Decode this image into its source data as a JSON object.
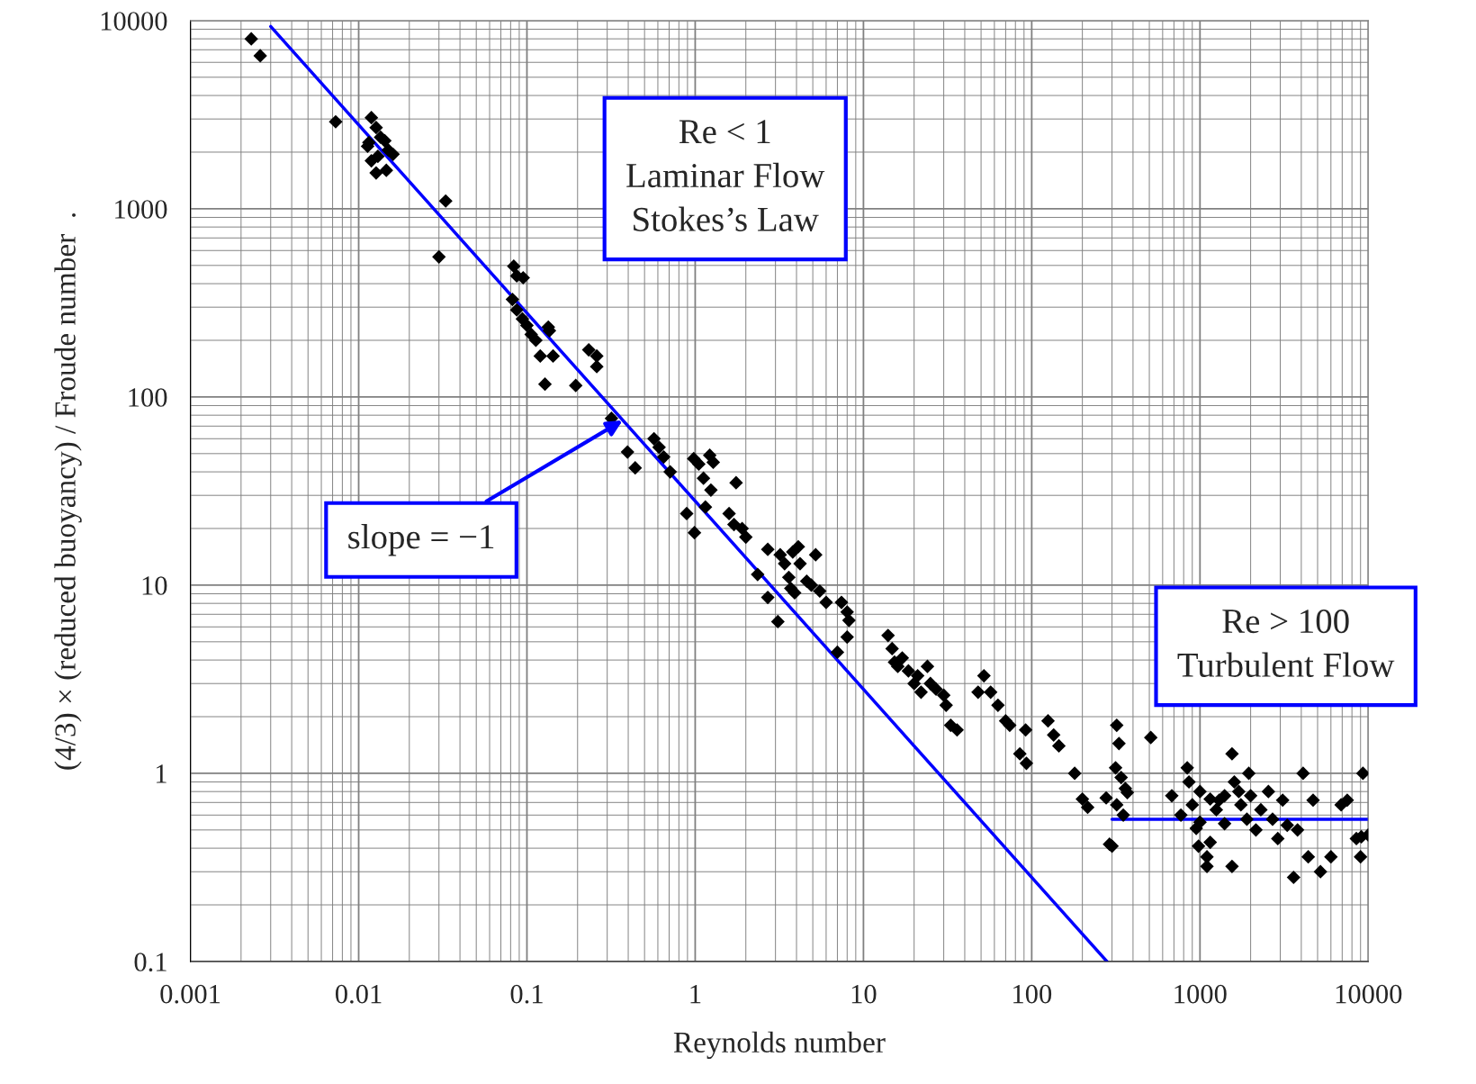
{
  "chart_data": {
    "type": "scatter",
    "xlabel": "Reynolds number",
    "ylabel": "(4/3) × (reduced buoyancy) / Froude number  .",
    "log": "xy",
    "grid": true,
    "legend": false,
    "xlim": [
      0.001,
      10000
    ],
    "ylim": [
      0.1,
      10000
    ],
    "xticks": [
      0.001,
      0.01,
      0.1,
      1,
      10,
      100,
      1000,
      10000
    ],
    "yticks": [
      0.1,
      1,
      10,
      100,
      1000,
      10000
    ],
    "series": [
      {
        "color": "#000000",
        "marker": "diamond",
        "x": [
          0.0023,
          0.0026,
          0.0073,
          0.0119,
          0.0127,
          0.0135,
          0.0143,
          0.015,
          0.016,
          0.0113,
          0.0119,
          0.0127,
          0.0146,
          0.0115,
          0.013,
          0.0329,
          0.03,
          0.0835,
          0.087,
          0.095,
          0.082,
          0.087,
          0.094,
          0.1,
          0.106,
          0.113,
          0.12,
          0.128,
          0.134,
          0.143,
          0.136,
          0.195,
          0.233,
          0.26,
          0.26,
          0.318,
          0.396,
          0.44,
          0.569,
          0.61,
          0.65,
          0.71,
          0.89,
          0.99,
          0.98,
          1.05,
          1.12,
          1.15,
          1.22,
          1.28,
          1.24,
          1.59,
          1.7,
          1.9,
          2.0,
          1.75,
          2.35,
          2.7,
          2.7,
          3.1,
          3.2,
          3.4,
          3.6,
          3.7,
          3.9,
          3.8,
          4.1,
          4.2,
          4.6,
          4.9,
          5.2,
          5.5,
          6.0,
          7.0,
          7.4,
          8.0,
          8.2,
          8.0,
          14,
          14.8,
          15.3,
          16,
          17,
          18.5,
          20,
          21,
          22,
          24,
          25,
          27,
          30,
          33,
          36,
          31,
          52,
          48,
          57,
          63,
          70,
          74,
          92,
          85,
          93,
          125,
          135,
          145,
          180,
          200,
          215,
          277,
          290,
          300,
          320,
          330,
          315,
          340,
          360,
          350,
          370,
          510,
          320,
          680,
          770,
          840,
          860,
          900,
          950,
          980,
          1000,
          1000,
          1100,
          1100,
          1150,
          1250,
          1150,
          1300,
          1400,
          1400,
          1550,
          1550,
          1600,
          1700,
          1750,
          1900,
          2000,
          1950,
          2150,
          2300,
          2550,
          2700,
          2900,
          3100,
          3300,
          3600,
          3800,
          4100,
          4400,
          4700,
          5200,
          6000,
          6900,
          7500,
          8500,
          9000,
          9300,
          10000,
          9100
        ],
        "values": [
          8000,
          6500,
          2900,
          3050,
          2700,
          2400,
          2300,
          2050,
          1950,
          2150,
          1800,
          1550,
          1600,
          2250,
          1900,
          1100,
          555,
          495,
          440,
          430,
          330,
          290,
          260,
          240,
          215,
          200,
          165,
          117,
          235,
          165,
          225,
          115,
          178,
          165,
          145,
          77,
          51,
          42,
          60,
          54,
          48,
          40,
          24,
          19,
          47,
          44,
          37,
          26,
          49,
          45,
          32,
          24,
          21,
          20,
          18,
          35,
          11.4,
          8.6,
          15.5,
          6.4,
          14.5,
          13,
          11,
          9.6,
          9.1,
          15,
          16,
          13,
          10.5,
          10,
          14.5,
          9.3,
          8.1,
          4.4,
          8.1,
          7.2,
          6.5,
          5.3,
          5.4,
          4.6,
          3.9,
          3.7,
          4.1,
          3.5,
          3.0,
          3.3,
          2.7,
          3.7,
          3.0,
          2.8,
          2.6,
          1.8,
          1.7,
          2.3,
          3.3,
          2.7,
          2.7,
          2.3,
          1.9,
          1.8,
          1.7,
          1.27,
          1.13,
          1.9,
          1.6,
          1.4,
          1.0,
          0.73,
          0.66,
          0.74,
          0.42,
          0.41,
          1.8,
          1.44,
          1.07,
          0.95,
          0.83,
          0.6,
          0.79,
          1.55,
          0.68,
          0.76,
          0.6,
          1.07,
          0.9,
          0.68,
          0.51,
          0.41,
          0.55,
          0.8,
          0.36,
          0.32,
          0.43,
          0.64,
          0.73,
          0.72,
          0.54,
          0.76,
          0.32,
          1.27,
          0.9,
          0.8,
          0.68,
          0.57,
          0.76,
          1.0,
          0.5,
          0.64,
          0.8,
          0.57,
          0.45,
          0.72,
          0.53,
          0.28,
          0.5,
          1.0,
          0.36,
          0.72,
          0.3,
          0.36,
          0.68,
          0.72,
          0.45,
          0.36,
          1.0,
          0.47,
          0.46
        ]
      },
      {
        "type": "line",
        "color": "#0000ff",
        "line_style": "solid",
        "x": [
          0.003,
          280
        ],
        "values": [
          9300,
          0.1
        ]
      },
      {
        "type": "line",
        "color": "#0000ff",
        "line_style": "solid",
        "x": [
          300,
          10000
        ],
        "values": [
          0.57,
          0.57
        ]
      }
    ],
    "annotations": [
      "Re < 1\nLaminar Flow\nStokes’s Law",
      {
        "text": "slope = −1",
        "x": 0.37,
        "y": 75
      },
      "Re > 100\nTurbulent Flow"
    ]
  }
}
